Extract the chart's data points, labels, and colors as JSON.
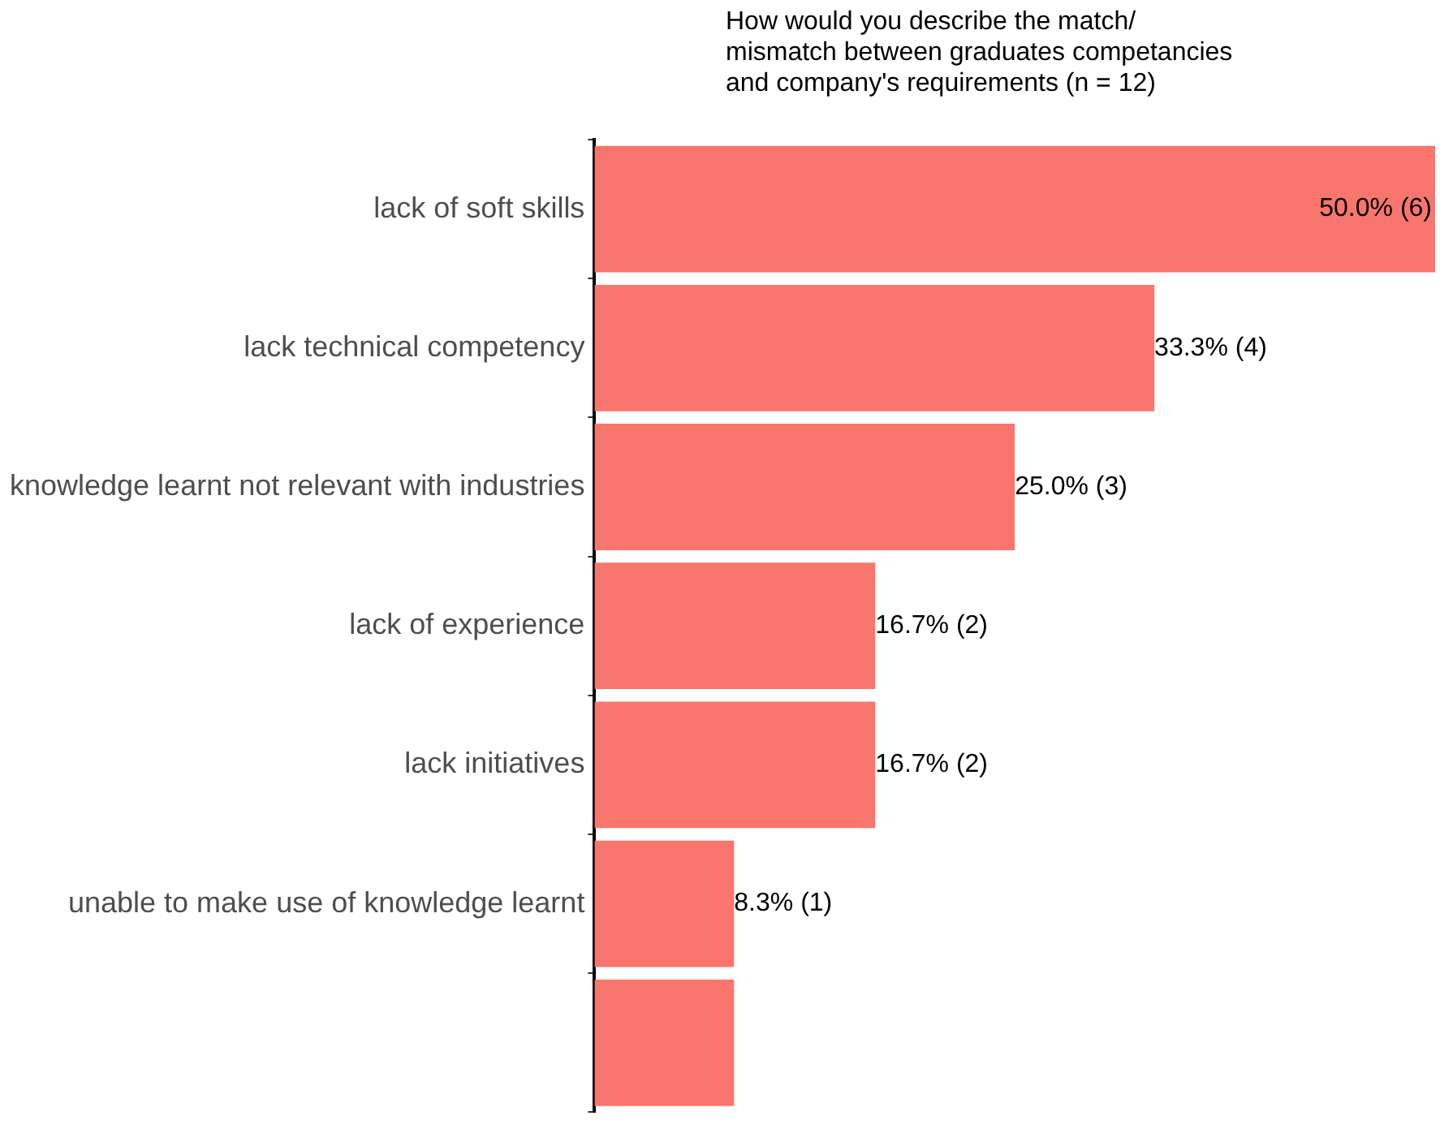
{
  "chart_data": {
    "type": "bar",
    "orientation": "horizontal",
    "title": "How would you describe the match/\nmismatch between graduates competancies\nand company's requirements (n = 12)",
    "categories": [
      "lack of soft skills",
      "lack technical competency",
      "knowledge learnt not relevant with industries",
      "lack of experience",
      "lack initiatives",
      "unable to make use of knowledge learnt",
      null
    ],
    "values": [
      50.0,
      33.3,
      25.0,
      16.7,
      16.7,
      8.3,
      8.3
    ],
    "value_labels": [
      "50.0% (6)",
      "33.3% (4)",
      "25.0% (3)",
      "16.7% (2)",
      "16.7% (2)",
      "8.3% (1)",
      null
    ],
    "color": "#f8766d",
    "legend": false,
    "tick_labels": "y"
  }
}
